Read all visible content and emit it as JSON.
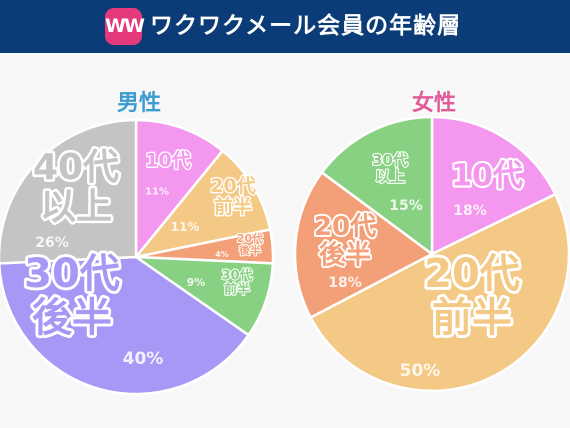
{
  "header": {
    "logo_text": "WW",
    "title": "ワクワクメール会員の年齢層",
    "background": "#0b3c77",
    "logo_color": "#e43a7d"
  },
  "chart_data": [
    {
      "type": "pie",
      "title": "男性",
      "slices": [
        {
          "label_lines": [
            "10代"
          ],
          "value": 11,
          "percent_label": "11%",
          "color": "#f497ee"
        },
        {
          "label_lines": [
            "20代",
            "前半"
          ],
          "value": 11,
          "percent_label": "11%",
          "color": "#f4c985"
        },
        {
          "label_lines": [
            "20代",
            "後半"
          ],
          "value": 4,
          "percent_label": "4%",
          "color": "#f3a078"
        },
        {
          "label_lines": [
            "30代",
            "前半"
          ],
          "value": 9,
          "percent_label": "9%",
          "color": "#88d183"
        },
        {
          "label_lines": [
            "30代",
            "後半"
          ],
          "value": 40,
          "percent_label": "40%",
          "color": "#a898f5"
        },
        {
          "label_lines": [
            "40代",
            "以上"
          ],
          "value": 26,
          "percent_label": "26%",
          "color": "#c4c4c4"
        }
      ]
    },
    {
      "type": "pie",
      "title": "女性",
      "slices": [
        {
          "label_lines": [
            "10代"
          ],
          "value": 18,
          "percent_label": "18%",
          "color": "#f497ee"
        },
        {
          "label_lines": [
            "20代",
            "前半"
          ],
          "value": 50,
          "percent_label": "50%",
          "color": "#f4c985"
        },
        {
          "label_lines": [
            "20代",
            "後半"
          ],
          "value": 18,
          "percent_label": "18%",
          "color": "#f3a078"
        },
        {
          "label_lines": [
            "30代",
            "以上"
          ],
          "value": 15,
          "percent_label": "15%",
          "color": "#88d183"
        }
      ]
    }
  ]
}
